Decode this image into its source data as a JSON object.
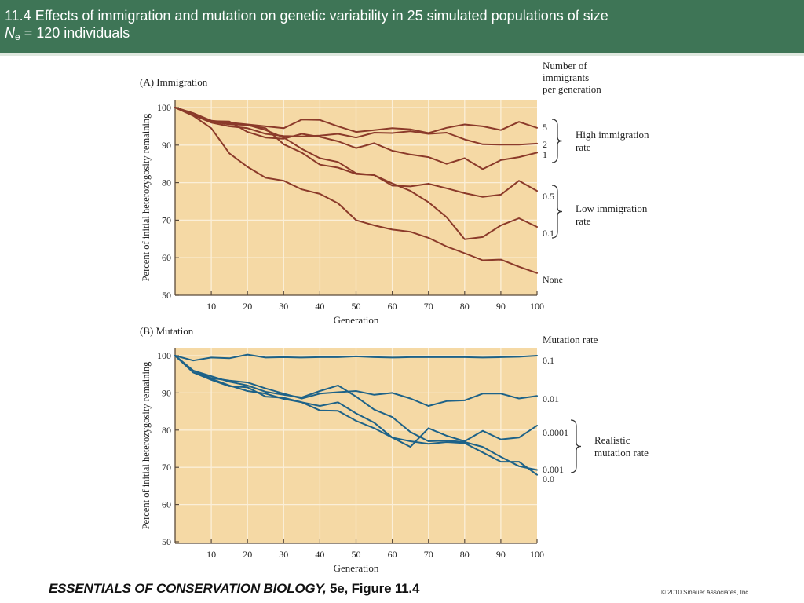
{
  "slide": {
    "title_line1": "11.4  Effects of immigration and mutation on genetic variability in 25 simulated populations of size",
    "title_ne_symbol": "N",
    "title_ne_subscript": "e",
    "title_line2_rest": " = 120 individuals",
    "footer_book": "ESSENTIALS OF CONSERVATION BIOLOGY,",
    "footer_figure": " 5e, Figure 11.4",
    "copyright": "© 2010 Sinauer Associates, Inc.",
    "colors": {
      "title_bg": "#3e7556",
      "plot_bg": "#f5d9a5",
      "immigration_line": "#8b3a2a",
      "mutation_line": "#1d6288",
      "gridline": "#fbefd8"
    }
  },
  "chart_data": [
    {
      "type": "line",
      "panel_label": "(A)  Immigration",
      "xlabel": "Generation",
      "ylabel": "Percent of initial heterozygosity remaining",
      "xlim": [
        0,
        100
      ],
      "ylim": [
        50,
        100
      ],
      "xticks": [
        10,
        20,
        30,
        40,
        50,
        60,
        70,
        80,
        90,
        100
      ],
      "yticks": [
        50,
        60,
        70,
        80,
        90,
        100
      ],
      "grid": true,
      "legend_title": [
        "Number of",
        "immigrants",
        "per generation"
      ],
      "groups": [
        {
          "label": [
            "High immigration",
            "rate"
          ],
          "members": [
            "5",
            "2",
            "1"
          ]
        },
        {
          "label": [
            "Low immigration",
            "rate"
          ],
          "members": [
            "0.5",
            "0.1"
          ]
        }
      ],
      "x": [
        0,
        5,
        10,
        15,
        20,
        25,
        30,
        35,
        40,
        45,
        50,
        55,
        60,
        65,
        70,
        75,
        80,
        85,
        90,
        95,
        100
      ],
      "series": [
        {
          "name": "5",
          "values": [
            100,
            97.8,
            96.5,
            96,
            95.5,
            95,
            94.5,
            96.8,
            96.7,
            95,
            93.5,
            94,
            94.5,
            94.2,
            93.2,
            94.6,
            95.5,
            95,
            94,
            96.2,
            94.6
          ]
        },
        {
          "name": "2",
          "values": [
            100,
            98,
            96,
            95,
            94.5,
            93,
            92.4,
            92.3,
            92.5,
            93,
            92,
            93.3,
            93.2,
            93.7,
            93,
            93.3,
            91.5,
            90.2,
            90.1,
            90.1,
            90.4
          ]
        },
        {
          "name": "1",
          "values": [
            100,
            98,
            96.4,
            96.3,
            93.5,
            92,
            91.7,
            93,
            92.2,
            91,
            89.2,
            90.5,
            88.5,
            87.5,
            86.8,
            85,
            86.5,
            83.6,
            86,
            86.8,
            88
          ]
        },
        {
          "name": "0.5",
          "values": [
            100,
            98.5,
            96.3,
            95.5,
            95.4,
            94,
            92,
            89,
            86.5,
            85.5,
            82.5,
            82,
            79.2,
            79,
            79.7,
            78.5,
            77.2,
            76.2,
            76.8,
            80.5,
            77.8
          ]
        },
        {
          "name": "0.1",
          "values": [
            100,
            98.5,
            96.5,
            95.8,
            95.3,
            94.5,
            90.2,
            88,
            84.8,
            84,
            82.3,
            82,
            79.8,
            77.8,
            74.8,
            70.8,
            64.9,
            65.5,
            68.6,
            70.5,
            68.2
          ]
        },
        {
          "name": "None",
          "values": [
            100,
            97.8,
            94.5,
            87.8,
            84.2,
            81.3,
            80.5,
            78.2,
            77,
            74.5,
            70,
            68.6,
            67.5,
            66.9,
            65.3,
            63,
            61.2,
            59.3,
            59.5,
            57.6,
            55.9
          ]
        }
      ]
    },
    {
      "type": "line",
      "panel_label": "(B)  Mutation",
      "xlabel": "Generation",
      "ylabel": "Percent of initial heterozygosity remaining",
      "xlim": [
        0,
        100
      ],
      "ylim": [
        50,
        100
      ],
      "xticks": [
        10,
        20,
        30,
        40,
        50,
        60,
        70,
        80,
        90,
        100
      ],
      "yticks": [
        50,
        60,
        70,
        80,
        90,
        100
      ],
      "grid": true,
      "legend_title": [
        "Mutation rate"
      ],
      "groups": [
        {
          "label": [
            "Realistic",
            "mutation rate"
          ],
          "members": [
            "0.0001",
            "0.001"
          ]
        }
      ],
      "x": [
        0,
        5,
        10,
        15,
        20,
        25,
        30,
        35,
        40,
        45,
        50,
        55,
        60,
        65,
        70,
        75,
        80,
        85,
        90,
        95,
        100
      ],
      "series": [
        {
          "name": "0.1",
          "values": [
            100,
            98.7,
            99.5,
            99.3,
            100.3,
            99.5,
            99.6,
            99.5,
            99.6,
            99.6,
            99.8,
            99.6,
            99.5,
            99.6,
            99.6,
            99.6,
            99.6,
            99.5,
            99.6,
            99.7,
            100
          ]
        },
        {
          "name": "0.01",
          "values": [
            100,
            96,
            94,
            93.3,
            92.8,
            91.2,
            89.8,
            88.5,
            89.8,
            90.2,
            90.5,
            89.5,
            90,
            88.5,
            86.5,
            87.8,
            88,
            89.8,
            89.8,
            88.5,
            89.2
          ]
        },
        {
          "name": "0.0001",
          "values": [
            100,
            95.5,
            93.5,
            91.8,
            91.5,
            89,
            88.7,
            87.5,
            86.5,
            87.5,
            84.5,
            82,
            78,
            75.5,
            80.5,
            78.5,
            77,
            79.8,
            77.5,
            78,
            81.2
          ]
        },
        {
          "name": "0.001",
          "values": [
            100,
            96,
            94.5,
            93,
            92,
            90.3,
            89.5,
            88.8,
            90.5,
            92,
            89,
            85.5,
            83.5,
            79.5,
            77,
            77.2,
            76.8,
            75.5,
            72.8,
            70.3,
            69.3
          ]
        },
        {
          "name": "0.0",
          "values": [
            100,
            95.5,
            93.8,
            92,
            90.5,
            89.8,
            88.4,
            87.5,
            85.3,
            85.2,
            82.5,
            80.5,
            78,
            77,
            76.3,
            76.8,
            76.5,
            74,
            71.5,
            71.5,
            68
          ]
        }
      ]
    }
  ]
}
